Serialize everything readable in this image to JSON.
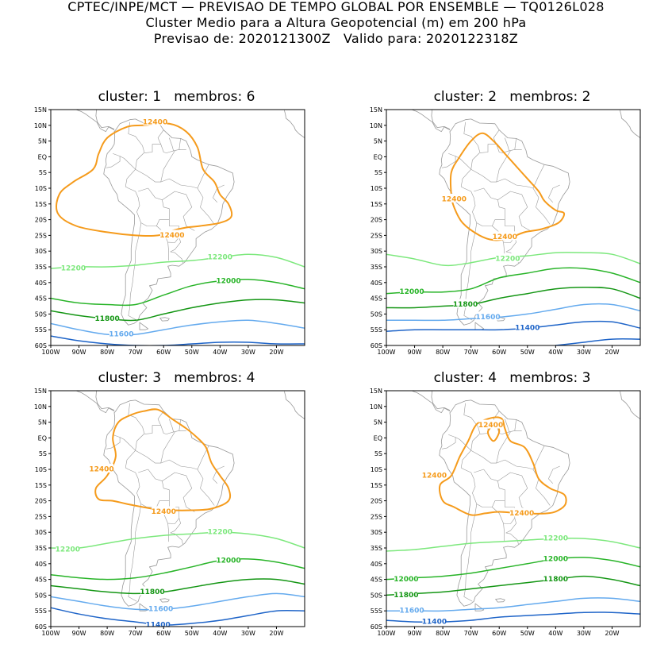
{
  "header": {
    "line1": "CPTEC/INPE/MCT — PREVISAO DE TEMPO GLOBAL POR ENSEMBLE — TQ0126L028",
    "line2": "Cluster Medio para a Altura Geopotencial (m) em 200 hPa",
    "line3": "Previsao de: 2020121300Z   Valido para: 2020122318Z"
  },
  "axes": {
    "lat_ticks": [
      "15N",
      "10N",
      "5N",
      "EQ",
      "5S",
      "10S",
      "15S",
      "20S",
      "25S",
      "30S",
      "35S",
      "40S",
      "45S",
      "50S",
      "55S",
      "60S"
    ],
    "lon_ticks": [
      "100W",
      "90W",
      "80W",
      "70W",
      "60W",
      "50W",
      "40W",
      "30W",
      "20W"
    ],
    "lat_range": [
      -60,
      15
    ],
    "lon_range": [
      -100,
      -10
    ]
  },
  "colors": {
    "c12400": "#f59b1c",
    "c12200": "#7ce87c",
    "c12000": "#28b428",
    "c11800": "#149614",
    "c11600": "#64aaee",
    "c11400": "#1e64c8",
    "coast": "#999999"
  },
  "chart_data": [
    {
      "type": "contour-map",
      "title": "cluster: 1   membros: 6",
      "labels": [
        "12400",
        "12400",
        "12200",
        "12200",
        "12000",
        "11800",
        "11600"
      ]
    },
    {
      "type": "contour-map",
      "title": "cluster: 2   membros: 2",
      "labels": [
        "12400",
        "12400",
        "12200",
        "12000",
        "11800",
        "11600",
        "11400"
      ]
    },
    {
      "type": "contour-map",
      "title": "cluster: 3   membros: 4",
      "labels": [
        "12400",
        "12400",
        "12200",
        "12200",
        "12000",
        "11800",
        "11600",
        "11400"
      ]
    },
    {
      "type": "contour-map",
      "title": "cluster: 4   membros: 3",
      "labels": [
        "12400",
        "12400",
        "12400",
        "12200",
        "12000",
        "12000",
        "11800",
        "11800",
        "11600",
        "11400"
      ]
    }
  ]
}
